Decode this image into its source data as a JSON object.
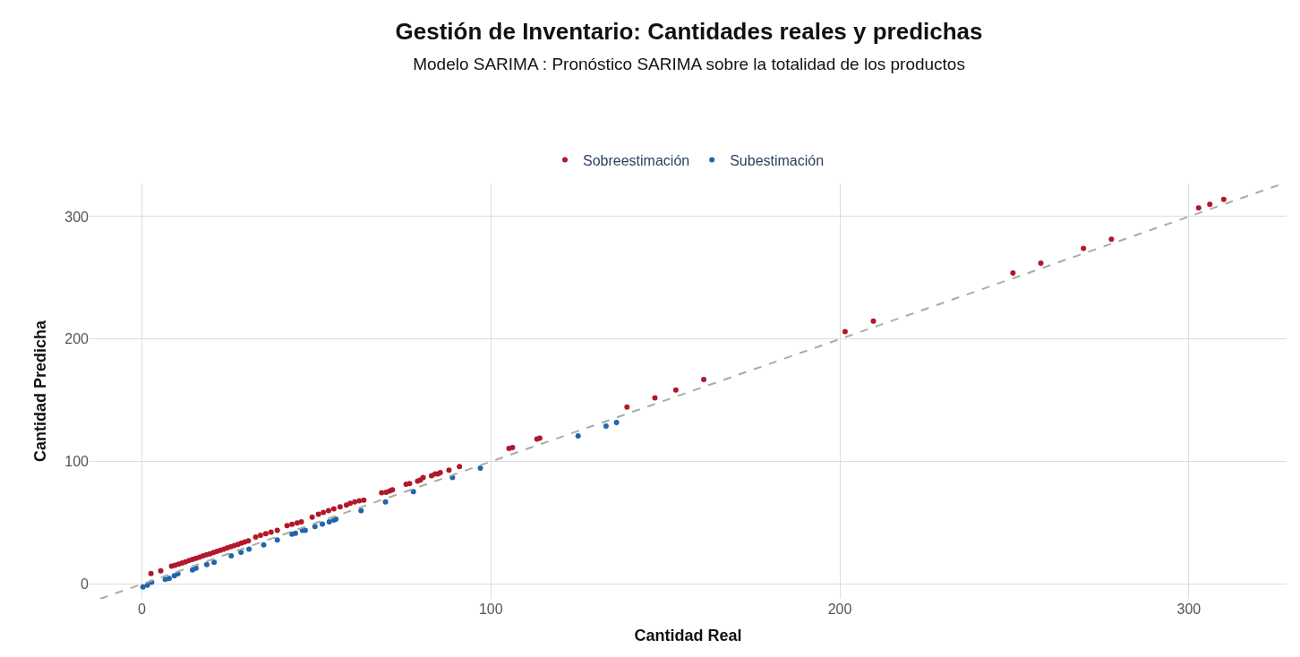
{
  "chart_data": {
    "type": "scatter",
    "title": "Gestión de Inventario: Cantidades reales y predichas",
    "subtitle": "Modelo SARIMA : Pronóstico SARIMA sobre la totalidad de los productos",
    "xlabel": "Cantidad Real",
    "ylabel": "Cantidad Predicha",
    "xlim": [
      -15,
      328
    ],
    "ylim": [
      -12,
      327
    ],
    "xticks": [
      0,
      100,
      200,
      300
    ],
    "yticks": [
      0,
      100,
      200,
      300
    ],
    "grid": true,
    "legend": "top",
    "marker": "circle",
    "series": [
      {
        "name": "Sobreestimación",
        "color": "#b2182b",
        "x": [
          2.6,
          5.4,
          8.5,
          9.5,
          10.5,
          11.5,
          12.5,
          13.5,
          14.5,
          15.5,
          16.5,
          17.5,
          18.5,
          19.5,
          20.5,
          21.5,
          22.5,
          23.5,
          24.5,
          25.5,
          26.5,
          27.5,
          28.5,
          29.5,
          30.5,
          32.6,
          34,
          35.5,
          37,
          38.8,
          41.6,
          43,
          44.5,
          45.7,
          48.8,
          50.6,
          52,
          53.5,
          55,
          56.8,
          58.6,
          59.7,
          61,
          62.3,
          63.6,
          68.7,
          70,
          71,
          71.8,
          75.7,
          76.7,
          79,
          79.8,
          80.6,
          83,
          84,
          84.8,
          85.5,
          88,
          91,
          105.2,
          106.2,
          113.2,
          114,
          139,
          147,
          153,
          161,
          201.5,
          209.6,
          249.6,
          257.6,
          269.8,
          277.8,
          302.8,
          306,
          310
        ],
        "values": [
          8.6,
          10.8,
          14.6,
          15.4,
          16.3,
          17.3,
          18.2,
          19.2,
          20.1,
          21,
          22,
          23,
          23.9,
          24.8,
          25.8,
          26.7,
          27.7,
          28.6,
          29.6,
          30.5,
          31.5,
          32.4,
          33.4,
          34.4,
          35.3,
          38.5,
          39.8,
          41.1,
          42.5,
          43.8,
          47.7,
          48.9,
          49.9,
          50.8,
          54.6,
          57,
          58.5,
          60,
          61.5,
          63,
          64.6,
          66,
          67,
          68,
          68.5,
          74.6,
          75,
          76,
          77,
          81.5,
          82,
          84,
          85,
          87,
          88.5,
          90,
          90,
          91,
          93,
          96,
          110.8,
          111.5,
          118.5,
          119.2,
          144.6,
          152,
          158.5,
          167,
          206,
          214.6,
          254,
          262,
          274,
          281.5,
          307,
          310,
          314
        ]
      },
      {
        "name": "Subestimación",
        "color": "#2166ac",
        "x": [
          0.3,
          1.6,
          2.8,
          6.7,
          7.8,
          9.3,
          10.3,
          14.5,
          15.5,
          18.6,
          20.7,
          25.6,
          28.4,
          30.7,
          34.9,
          38.8,
          43,
          44,
          46,
          46.8,
          49.6,
          51.7,
          53.7,
          55,
          55.6,
          62.8,
          69.8,
          77.8,
          89,
          97,
          125,
          133,
          136
        ],
        "values": [
          -2.3,
          -0.8,
          1.5,
          3.8,
          4.6,
          6.9,
          8.5,
          11.5,
          13,
          16,
          17.7,
          23,
          26,
          28.5,
          32,
          36,
          40.8,
          41.5,
          43.8,
          43.8,
          47,
          49,
          50.8,
          52.3,
          53,
          60,
          67,
          75.4,
          87,
          94.6,
          121,
          129,
          132
        ]
      },
      {
        "type": "line",
        "color": "#aaaaaa",
        "line_style": "dashed",
        "marker": "none",
        "x": [
          -12,
          327
        ],
        "values": [
          -12,
          327
        ]
      }
    ]
  }
}
